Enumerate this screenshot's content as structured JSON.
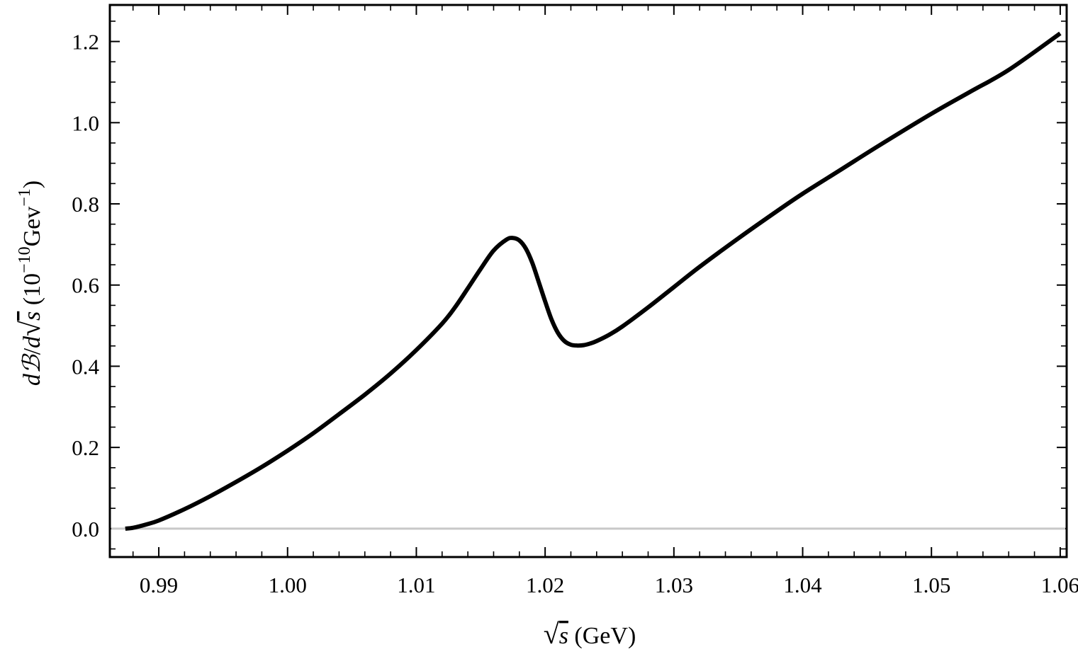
{
  "chart_data": {
    "type": "line",
    "title": "",
    "xlabel": {
      "radical": "√",
      "var": "s",
      "unit": " (GeV)"
    },
    "ylabel": {
      "prefix": "d",
      "script": "ℬ",
      "slash": "/",
      "d2": "d",
      "radical": "√",
      "var": "s",
      "unit_open": " (10",
      "unit_exp": "−10",
      "unit_mid": "Gev",
      "unit_exp2": "−1",
      "unit_close": ")"
    },
    "xlim": [
      0.9862,
      1.0605
    ],
    "ylim": [
      -0.07,
      1.29
    ],
    "x_ticks": [
      {
        "value": 0.99,
        "label": "0.99"
      },
      {
        "value": 1.0,
        "label": "1.00"
      },
      {
        "value": 1.01,
        "label": "1.01"
      },
      {
        "value": 1.02,
        "label": "1.02"
      },
      {
        "value": 1.03,
        "label": "1.03"
      },
      {
        "value": 1.04,
        "label": "1.04"
      },
      {
        "value": 1.05,
        "label": "1.05"
      },
      {
        "value": 1.06,
        "label": "1.06"
      }
    ],
    "y_ticks": [
      {
        "value": 0.0,
        "label": "0.0"
      },
      {
        "value": 0.2,
        "label": "0.2"
      },
      {
        "value": 0.4,
        "label": "0.4"
      },
      {
        "value": 0.6,
        "label": "0.6"
      },
      {
        "value": 0.8,
        "label": "0.8"
      },
      {
        "value": 1.0,
        "label": "1.0"
      },
      {
        "value": 1.2,
        "label": "1.2"
      }
    ],
    "grid": false,
    "zero_line": {
      "value": 0.0,
      "color": "#c8c8c8"
    },
    "series": [
      {
        "color": "#000000",
        "x": [
          0.9874,
          0.988,
          0.989,
          0.99,
          0.992,
          0.994,
          0.996,
          0.998,
          1.0,
          1.002,
          1.004,
          1.006,
          1.008,
          1.01,
          1.012,
          1.013,
          1.014,
          1.015,
          1.016,
          1.017,
          1.0175,
          1.018,
          1.0185,
          1.019,
          1.0195,
          1.02,
          1.0205,
          1.021,
          1.0215,
          1.022,
          1.0225,
          1.023,
          1.0235,
          1.024,
          1.025,
          1.026,
          1.028,
          1.03,
          1.032,
          1.035,
          1.038,
          1.04,
          1.043,
          1.046,
          1.05,
          1.053,
          1.056,
          1.06
        ],
        "y": [
          0.0,
          0.002,
          0.01,
          0.02,
          0.048,
          0.08,
          0.115,
          0.152,
          0.192,
          0.235,
          0.282,
          0.33,
          0.382,
          0.44,
          0.505,
          0.545,
          0.592,
          0.64,
          0.685,
          0.712,
          0.716,
          0.71,
          0.69,
          0.655,
          0.608,
          0.56,
          0.515,
          0.482,
          0.462,
          0.453,
          0.451,
          0.452,
          0.456,
          0.462,
          0.478,
          0.498,
          0.545,
          0.595,
          0.645,
          0.715,
          0.782,
          0.825,
          0.885,
          0.945,
          1.022,
          1.076,
          1.13,
          1.22
        ]
      }
    ]
  }
}
